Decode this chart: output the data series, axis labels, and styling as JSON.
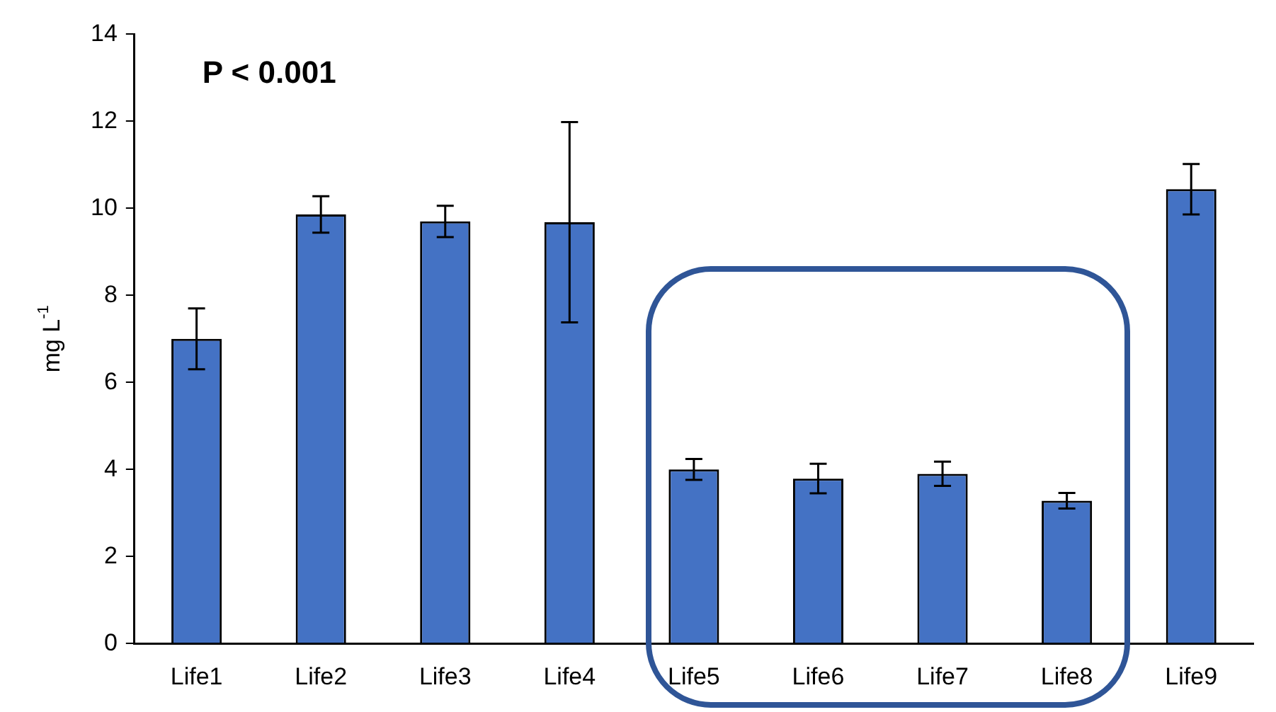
{
  "chart_data": {
    "type": "bar",
    "ylabel": "mg L$^{-1}$",
    "annotations": [
      "P < 0.001"
    ],
    "categories": [
      "Life1",
      "Life2",
      "Life3",
      "Life4",
      "Life5",
      "Life6",
      "Life7",
      "Life8",
      "Life9"
    ],
    "values": [
      7.0,
      9.86,
      9.7,
      9.68,
      4.0,
      3.79,
      3.9,
      3.28,
      10.44
    ],
    "errors": [
      0.7,
      0.42,
      0.36,
      2.3,
      0.24,
      0.34,
      0.28,
      0.18,
      0.58
    ],
    "color": "#4472c4",
    "ylim": [
      0,
      14
    ],
    "yticks": [
      0,
      2,
      4,
      6,
      8,
      10,
      12,
      14
    ],
    "grid": false,
    "legend": false
  }
}
